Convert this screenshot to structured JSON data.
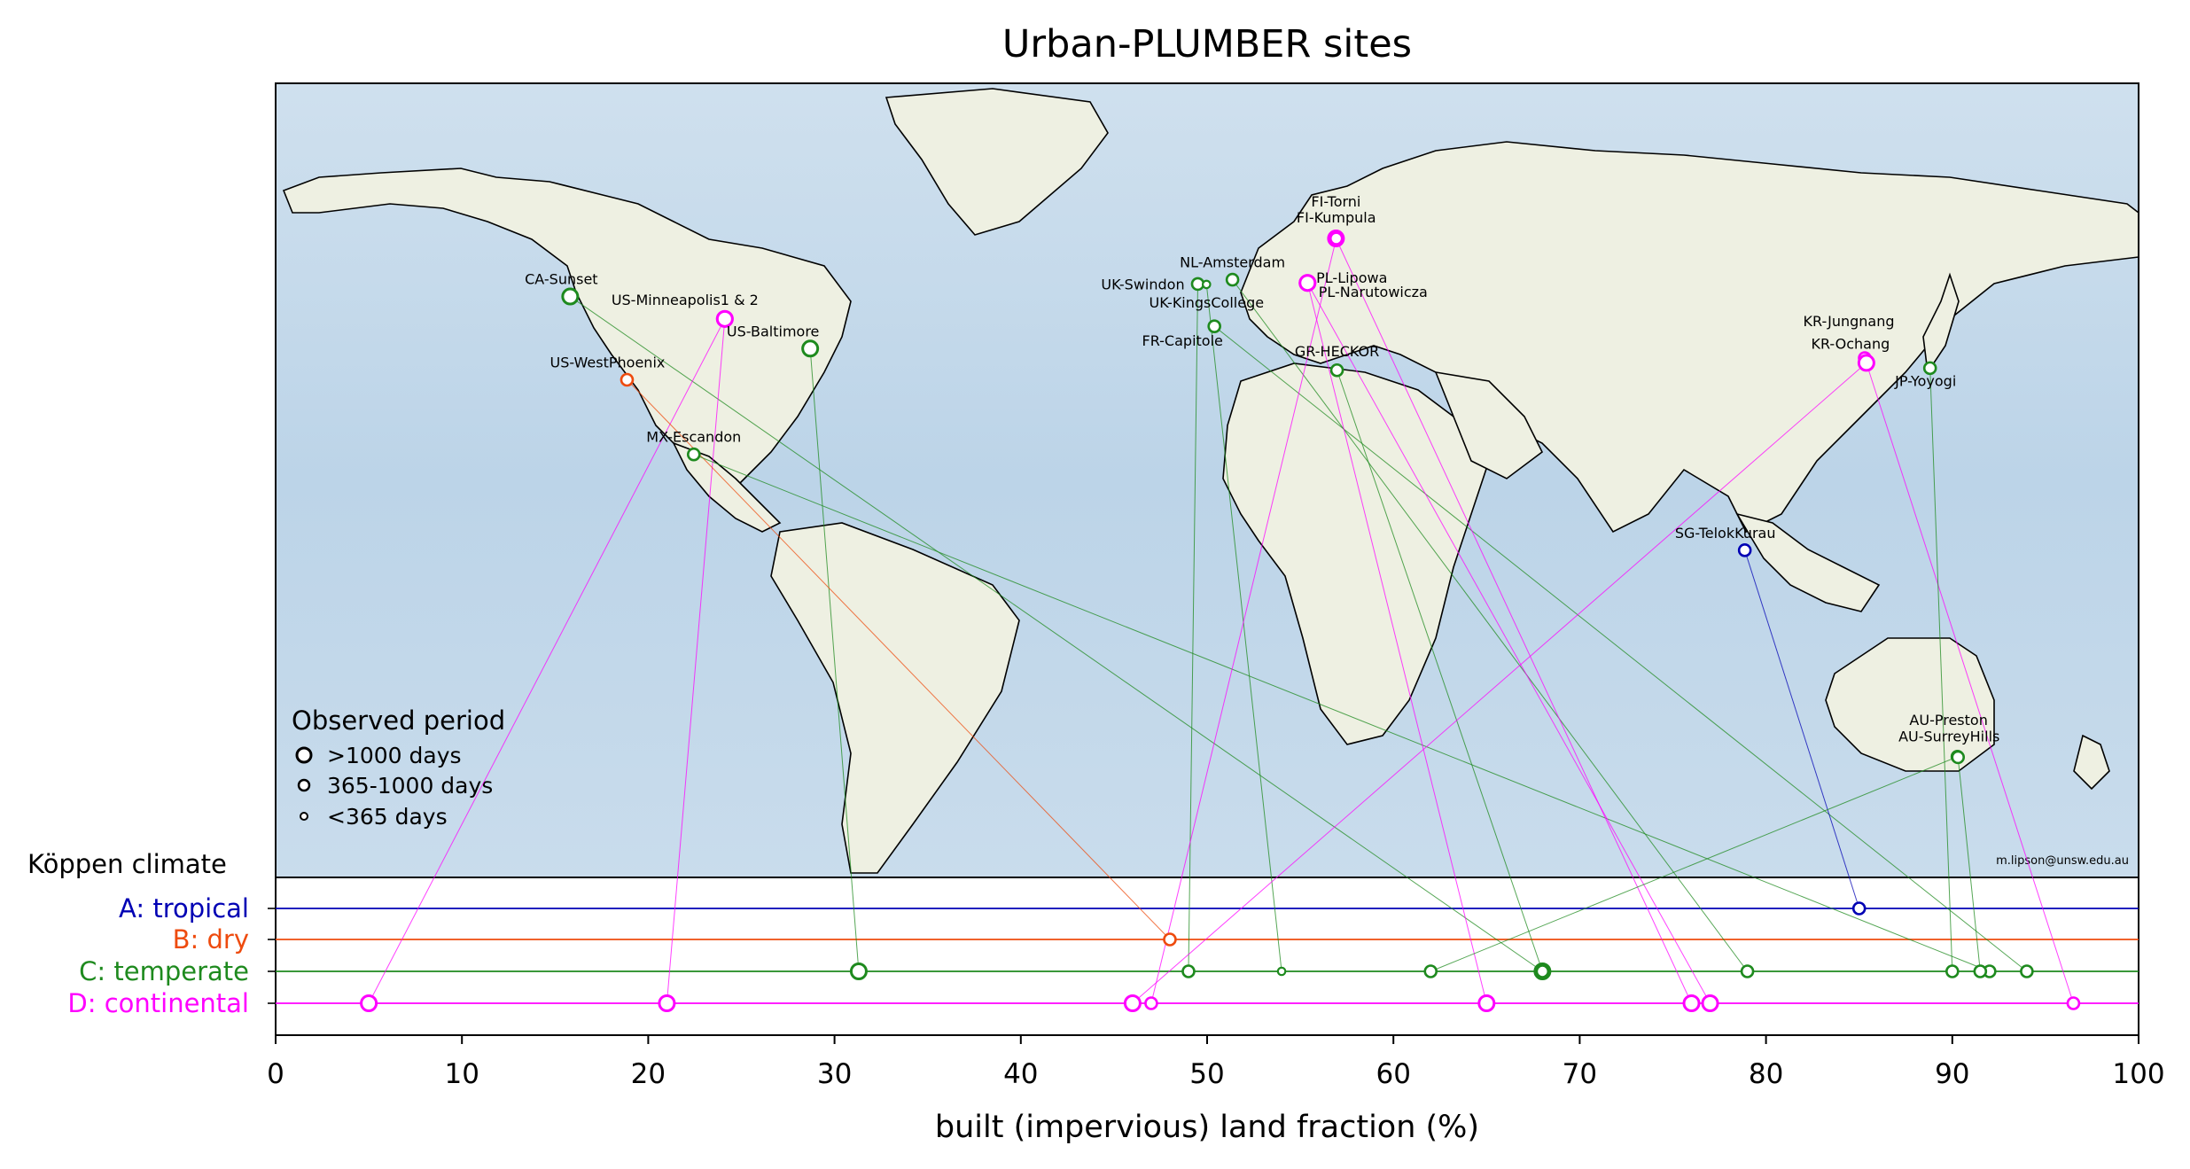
{
  "chart_data": {
    "type": "scatter",
    "title": "Urban-PLUMBER sites",
    "xlabel": "built (impervious) land fraction (%)",
    "ylabel": "Köppen climate",
    "xlim": [
      0,
      100
    ],
    "xticks": [
      "0",
      "10",
      "20",
      "30",
      "40",
      "50",
      "60",
      "70",
      "80",
      "90",
      "100"
    ],
    "climates": [
      {
        "key": "A",
        "label": "A: tropical",
        "color": "#0000b4"
      },
      {
        "key": "B",
        "label": "B: dry",
        "color": "#ee4b0e"
      },
      {
        "key": "C",
        "label": "C: temperate",
        "color": "#1e8a1e"
      },
      {
        "key": "D",
        "label": "D: continental",
        "color": "#ff00ff"
      }
    ],
    "legend": {
      "title": "Observed period",
      "placement": "lower-left",
      "entries": [
        ">1000 days",
        "365-1000 days",
        "<365 days"
      ]
    },
    "credit": "m.lipson@unsw.edu.au",
    "sites": [
      {
        "name": "CA-Sunset",
        "climate": "C",
        "built": 68,
        "period": "large",
        "lon": -123.08,
        "lat": 49.23
      },
      {
        "name": "US-Minneapolis1 & 2",
        "climate": "D",
        "built": 21,
        "period": "large",
        "lon": -93.2,
        "lat": 45.0
      },
      {
        "name": "US-Minneapolis1 & 2",
        "climate": "D",
        "built": 5,
        "period": "large",
        "lon": -93.2,
        "lat": 45.0
      },
      {
        "name": "US-Baltimore",
        "climate": "C",
        "built": 31.3,
        "period": "large",
        "lon": -76.7,
        "lat": 39.4
      },
      {
        "name": "US-WestPhoenix",
        "climate": "B",
        "built": 48,
        "period": "mid",
        "lon": -112.1,
        "lat": 33.5
      },
      {
        "name": "MX-Escandon",
        "climate": "C",
        "built": 92,
        "period": "mid",
        "lon": -99.2,
        "lat": 19.4
      },
      {
        "name": "UK-Swindon",
        "climate": "C",
        "built": 49,
        "period": "mid",
        "lon": -1.8,
        "lat": 51.6
      },
      {
        "name": "NL-Amsterdam",
        "climate": "C",
        "built": 79,
        "period": "mid",
        "lon": 4.9,
        "lat": 52.4
      },
      {
        "name": "UK-KingsCollege",
        "climate": "C",
        "built": 54,
        "period": "small",
        "lon": -0.12,
        "lat": 51.51
      },
      {
        "name": "FR-Capitole",
        "climate": "C",
        "built": 94,
        "period": "mid",
        "lon": 1.4,
        "lat": 43.6
      },
      {
        "name": "FI-Torni",
        "climate": "D",
        "built": 76,
        "period": "large",
        "lon": 24.9,
        "lat": 60.2
      },
      {
        "name": "FI-Kumpula",
        "climate": "D",
        "built": 47,
        "period": "mid",
        "lon": 24.96,
        "lat": 60.2
      },
      {
        "name": "PL-Lipowa",
        "climate": "D",
        "built": 77,
        "period": "large",
        "lon": 19.4,
        "lat": 51.8
      },
      {
        "name": "PL-Narutowicza",
        "climate": "D",
        "built": 65,
        "period": "large",
        "lon": 19.4,
        "lat": 51.8
      },
      {
        "name": "GR-HECKOR",
        "climate": "C",
        "built": 68,
        "period": "mid",
        "lon": 25.1,
        "lat": 35.3
      },
      {
        "name": "KR-Jungnang",
        "climate": "D",
        "built": 96.5,
        "period": "mid",
        "lon": 127.08,
        "lat": 37.6
      },
      {
        "name": "KR-Ochang",
        "climate": "D",
        "built": 46,
        "period": "large",
        "lon": 127.4,
        "lat": 36.7
      },
      {
        "name": "JP-Yoyogi",
        "climate": "C",
        "built": 90,
        "period": "mid",
        "lon": 139.7,
        "lat": 35.7
      },
      {
        "name": "SG-TelokKurau",
        "climate": "A",
        "built": 85,
        "period": "mid",
        "lon": 103.9,
        "lat": 1.3
      },
      {
        "name": "AU-Preston",
        "climate": "C",
        "built": 62,
        "period": "mid",
        "lon": 145.0,
        "lat": -37.7
      },
      {
        "name": "AU-SurreyHills",
        "climate": "C",
        "built": 91.5,
        "period": "mid",
        "lon": 145.1,
        "lat": -37.8
      }
    ]
  }
}
